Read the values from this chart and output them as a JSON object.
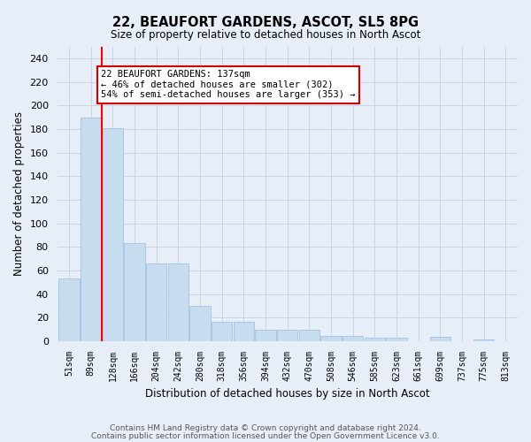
{
  "title": "22, BEAUFORT GARDENS, ASCOT, SL5 8PG",
  "subtitle": "Size of property relative to detached houses in North Ascot",
  "xlabel": "Distribution of detached houses by size in North Ascot",
  "ylabel": "Number of detached properties",
  "categories": [
    "51sqm",
    "89sqm",
    "128sqm",
    "166sqm",
    "204sqm",
    "242sqm",
    "280sqm",
    "318sqm",
    "356sqm",
    "394sqm",
    "432sqm",
    "470sqm",
    "508sqm",
    "546sqm",
    "585sqm",
    "623sqm",
    "661sqm",
    "699sqm",
    "737sqm",
    "775sqm",
    "813sqm"
  ],
  "values": [
    53,
    190,
    181,
    83,
    66,
    66,
    30,
    17,
    17,
    10,
    10,
    10,
    5,
    5,
    3,
    3,
    0,
    4,
    0,
    2,
    0
  ],
  "bar_color": "#c8dcf0",
  "bar_edgecolor": "#a8c8e8",
  "redline_x": 1.5,
  "redline_label": "22 BEAUFORT GARDENS: 137sqm",
  "arrow_left_text": "← 46% of detached houses are smaller (302)",
  "arrow_right_text": "54% of semi-detached houses are larger (353) →",
  "annotation_box_color": "#ffffff",
  "annotation_box_edgecolor": "#cc0000",
  "ylim": [
    0,
    250
  ],
  "yticks": [
    0,
    20,
    40,
    60,
    80,
    100,
    120,
    140,
    160,
    180,
    200,
    220,
    240
  ],
  "grid_color": "#ccd4e4",
  "bg_color": "#e8eef8",
  "footer1": "Contains HM Land Registry data © Crown copyright and database right 2024.",
  "footer2": "Contains public sector information licensed under the Open Government Licence v3.0."
}
